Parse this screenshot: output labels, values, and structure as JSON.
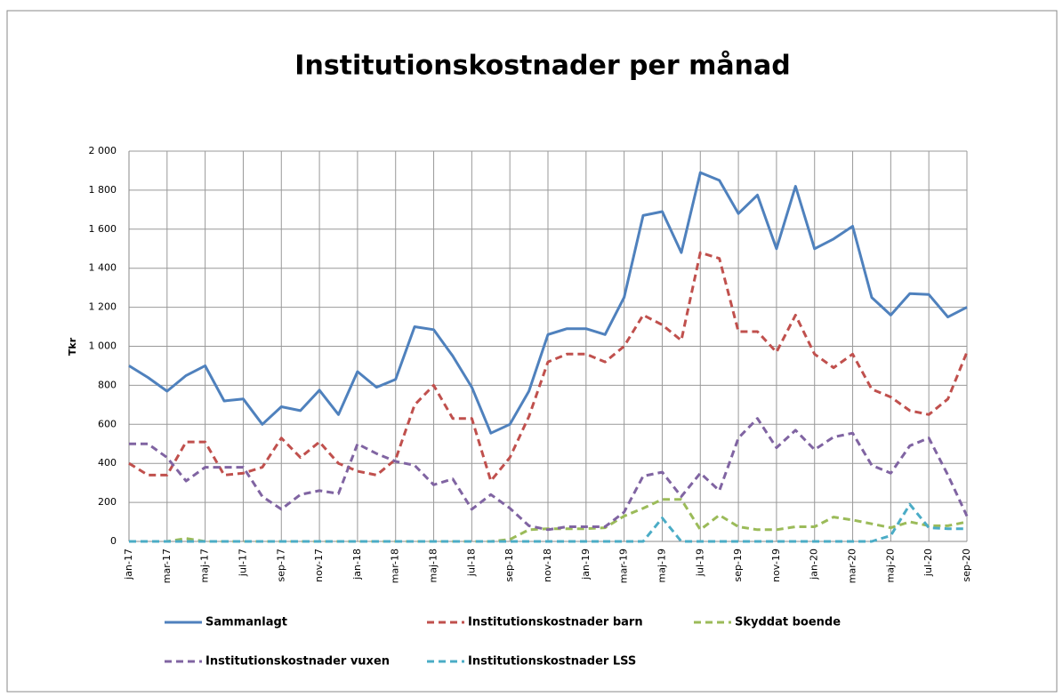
{
  "chart_data": {
    "type": "line",
    "title": "Institutionskostnader per månad",
    "y_label": "Tkr",
    "categories": [
      "jan-17",
      null,
      "mar-17",
      null,
      "maj-17",
      null,
      "jul-17",
      null,
      "sep-17",
      null,
      "nov-17",
      null,
      "jan-18",
      null,
      "mar-18",
      null,
      "maj-18",
      null,
      "jul-18",
      null,
      "sep-18",
      null,
      "nov-18",
      null,
      "jan-19",
      null,
      "mar-19",
      null,
      "maj-19",
      null,
      "jul-19",
      null,
      "sep-19",
      null,
      "nov-19",
      null,
      "jan-20",
      null,
      "mar-20",
      null,
      "maj-20",
      null,
      "jul-20",
      null,
      "sep-20"
    ],
    "ylim": [
      0,
      2000
    ],
    "yticks": [
      0,
      200,
      400,
      600,
      800,
      {
        "value": 1000,
        "label": "1 000"
      },
      {
        "value": 1200,
        "label": "1 200"
      },
      {
        "value": 1400,
        "label": "1 400"
      },
      {
        "value": 1600,
        "label": "1 600"
      },
      {
        "value": 1800,
        "label": "1 800"
      },
      {
        "value": 2000,
        "label": "2 000"
      }
    ],
    "grid": true,
    "series": [
      {
        "name": "Sammanlagt",
        "color": "#4f81bd",
        "dashed": false,
        "values": [
          900,
          840,
          770,
          850,
          900,
          720,
          730,
          600,
          690,
          670,
          775,
          650,
          870,
          790,
          830,
          1100,
          1085,
          950,
          790,
          555,
          600,
          770,
          1060,
          1090,
          1090,
          1060,
          1250,
          1670,
          1690,
          1480,
          1890,
          1850,
          1680,
          1775,
          1500,
          1820,
          1500,
          1550,
          1615,
          1250,
          1160,
          1270,
          1265,
          1150,
          1200
        ]
      },
      {
        "name": "Institutionskostnader barn",
        "color": "#c0504d",
        "dashed": true,
        "values": [
          400,
          340,
          340,
          510,
          510,
          340,
          350,
          380,
          530,
          430,
          510,
          400,
          360,
          340,
          420,
          700,
          800,
          630,
          630,
          310,
          430,
          640,
          920,
          960,
          960,
          920,
          1000,
          1160,
          1110,
          1030,
          1480,
          1450,
          1075,
          1075,
          970,
          1160,
          960,
          890,
          960,
          780,
          740,
          670,
          650,
          730,
          970
        ]
      },
      {
        "name": "Skyddat boende",
        "color": "#9bbb59",
        "dashed": true,
        "values": [
          0,
          0,
          0,
          15,
          0,
          0,
          0,
          0,
          0,
          0,
          0,
          0,
          0,
          0,
          0,
          0,
          0,
          0,
          0,
          0,
          10,
          60,
          65,
          65,
          65,
          70,
          130,
          170,
          215,
          215,
          60,
          135,
          75,
          60,
          60,
          75,
          75,
          125,
          110,
          90,
          70,
          100,
          80,
          80,
          100
        ]
      },
      {
        "name": "Institutionskostnader vuxen",
        "color": "#8064a2",
        "dashed": true,
        "values": [
          500,
          500,
          430,
          310,
          380,
          380,
          380,
          230,
          165,
          240,
          260,
          245,
          500,
          450,
          410,
          390,
          290,
          320,
          165,
          240,
          170,
          80,
          60,
          75,
          75,
          75,
          150,
          335,
          355,
          230,
          350,
          260,
          530,
          630,
          480,
          570,
          470,
          535,
          555,
          390,
          350,
          490,
          530,
          340,
          130
        ]
      },
      {
        "name": "Institutionskostnader LSS",
        "color": "#4bacc6",
        "dashed": true,
        "values": [
          0,
          0,
          0,
          0,
          0,
          0,
          0,
          0,
          0,
          0,
          0,
          0,
          0,
          0,
          0,
          0,
          0,
          0,
          0,
          0,
          0,
          0,
          0,
          0,
          0,
          0,
          0,
          0,
          120,
          0,
          0,
          0,
          0,
          0,
          0,
          0,
          0,
          0,
          0,
          0,
          30,
          190,
          70,
          65,
          65
        ]
      }
    ]
  }
}
